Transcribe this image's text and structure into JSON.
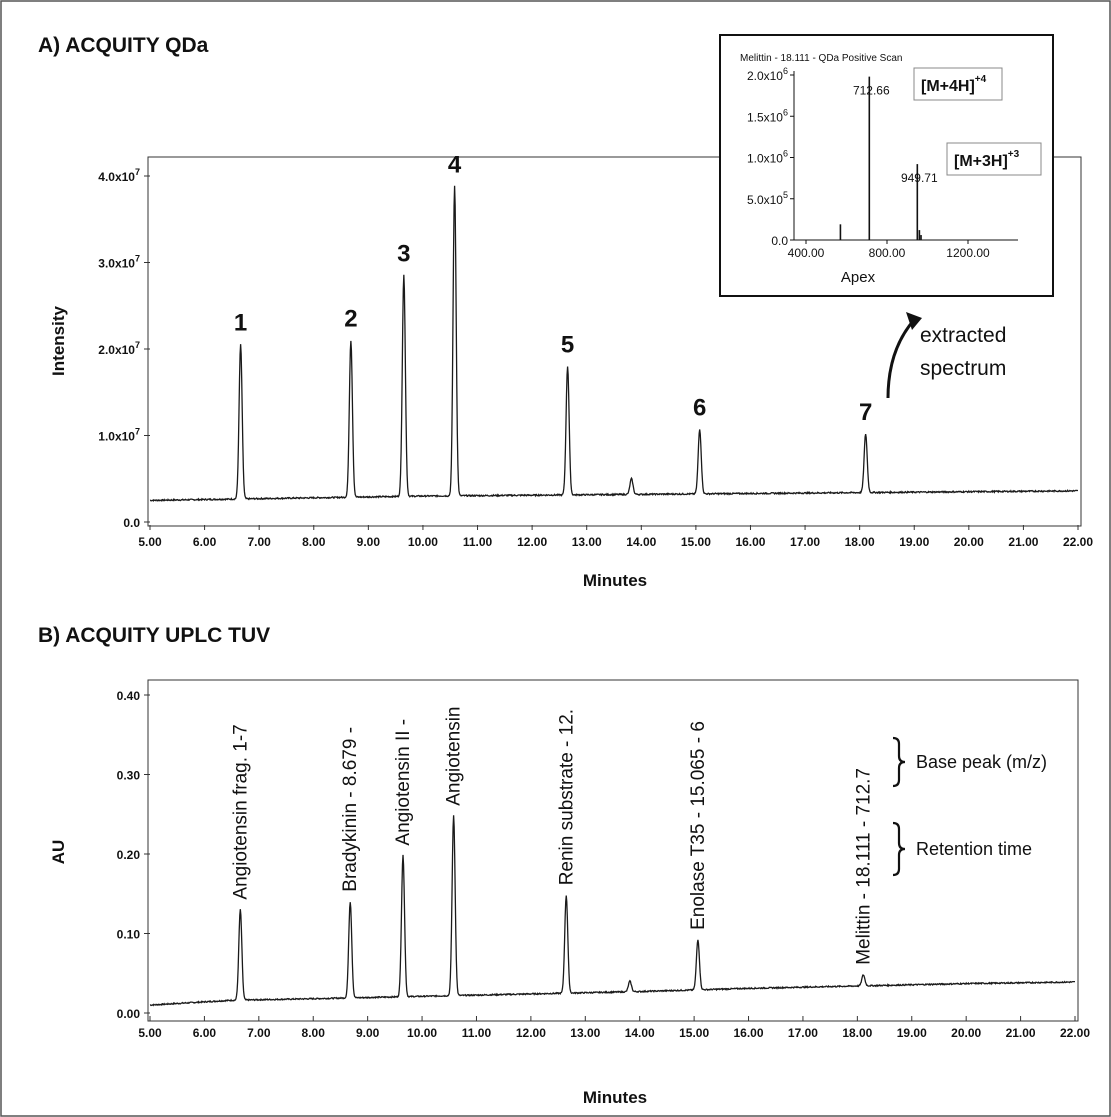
{
  "chart_data": [
    {
      "panel_title": "A) ACQUITY QDa",
      "type": "line",
      "xlabel": "Minutes",
      "ylabel": "Intensity",
      "xlim": [
        5,
        22
      ],
      "ylim": [
        0,
        40000000
      ],
      "x_ticks": [
        "5.00",
        "6.00",
        "7.00",
        "8.00",
        "9.00",
        "10.00",
        "11.00",
        "12.00",
        "13.00",
        "14.00",
        "15.00",
        "16.00",
        "17.00",
        "18.00",
        "19.00",
        "20.00",
        "21.00",
        "22.00"
      ],
      "y_ticks": [
        {
          "value": 0,
          "label": "0.0"
        },
        {
          "value": 10000000,
          "label": "1.0x10",
          "exp": "7"
        },
        {
          "value": 20000000,
          "label": "2.0x10",
          "exp": "7"
        },
        {
          "value": 30000000,
          "label": "3.0x10",
          "exp": "7"
        },
        {
          "value": 40000000,
          "label": "4.0x10",
          "exp": "7"
        }
      ],
      "baseline": [
        [
          5,
          2500000
        ],
        [
          6,
          2600000
        ],
        [
          8,
          2800000
        ],
        [
          10,
          3000000
        ],
        [
          12,
          3100000
        ],
        [
          14,
          3200000
        ],
        [
          16,
          3300000
        ],
        [
          18,
          3400000
        ],
        [
          20,
          3500000
        ],
        [
          22,
          3600000
        ]
      ],
      "peaks": [
        {
          "label": "1",
          "x": 6.66,
          "y": 20500000
        },
        {
          "label": "2",
          "x": 8.68,
          "y": 21000000
        },
        {
          "label": "3",
          "x": 9.65,
          "y": 28500000
        },
        {
          "label": "4",
          "x": 10.58,
          "y": 38800000
        },
        {
          "label": "5",
          "x": 12.65,
          "y": 18000000
        },
        {
          "label": "",
          "x": 13.82,
          "y": 5000000
        },
        {
          "label": "6",
          "x": 15.07,
          "y": 10700000
        },
        {
          "label": "7",
          "x": 18.11,
          "y": 10200000
        }
      ],
      "annotation": "extracted spectrum",
      "inset": {
        "title": "Melittin - 18.111 - QDa Positive Scan",
        "xlabel": "Apex",
        "x_ticks": [
          "400.00",
          "800.00",
          "1200.00"
        ],
        "xlim": [
          200,
          1400
        ],
        "ylim": [
          0,
          2000000
        ],
        "y_ticks": [
          {
            "value": 0,
            "label": "0.0"
          },
          {
            "value": 500000,
            "label": "5.0x10",
            "exp": "5"
          },
          {
            "value": 1000000,
            "label": "1.0x10",
            "exp": "6"
          },
          {
            "value": 1500000,
            "label": "1.5x10",
            "exp": "6"
          },
          {
            "value": 2000000,
            "label": "2.0x10",
            "exp": "6"
          }
        ],
        "bars": [
          {
            "mz": 570,
            "intensity": 190000
          },
          {
            "mz": 712.66,
            "intensity": 1980000,
            "label": "712.66",
            "ion_text": "[M+4H]",
            "ion_sup": "+4"
          },
          {
            "mz": 949.71,
            "intensity": 920000,
            "label": "949.71",
            "ion_text": "[M+3H]",
            "ion_sup": "+3"
          },
          {
            "mz": 960,
            "intensity": 120000
          },
          {
            "mz": 968,
            "intensity": 60000
          }
        ]
      }
    },
    {
      "panel_title": "B) ACQUITY UPLC TUV",
      "type": "line",
      "xlabel": "Minutes",
      "ylabel": "AU",
      "xlim": [
        5,
        22
      ],
      "ylim": [
        0,
        0.4
      ],
      "x_ticks": [
        "5.00",
        "6.00",
        "7.00",
        "8.00",
        "9.00",
        "10.00",
        "11.00",
        "12.00",
        "13.00",
        "14.00",
        "15.00",
        "16.00",
        "17.00",
        "18.00",
        "19.00",
        "20.00",
        "21.00",
        "22.00"
      ],
      "y_ticks": [
        {
          "value": 0,
          "label": "0.00"
        },
        {
          "value": 0.1,
          "label": "0.10"
        },
        {
          "value": 0.2,
          "label": "0.20"
        },
        {
          "value": 0.3,
          "label": "0.30"
        },
        {
          "value": 0.4,
          "label": "0.40"
        }
      ],
      "baseline": [
        [
          5,
          0.01
        ],
        [
          6.5,
          0.016
        ],
        [
          8,
          0.018
        ],
        [
          10,
          0.021
        ],
        [
          12,
          0.024
        ],
        [
          14,
          0.027
        ],
        [
          16,
          0.031
        ],
        [
          18,
          0.034
        ],
        [
          20,
          0.037
        ],
        [
          22,
          0.039
        ]
      ],
      "peaks": [
        {
          "label": "Angiotensin frag. 1-7",
          "x": 6.66,
          "y": 0.13
        },
        {
          "label": "Bradykinin - 8.679 -",
          "x": 8.68,
          "y": 0.14
        },
        {
          "label": "Angiotensin II -",
          "x": 9.65,
          "y": 0.198
        },
        {
          "label": "Angiotensin",
          "x": 10.58,
          "y": 0.248
        },
        {
          "label": "Renin substrate - 12.",
          "x": 12.65,
          "y": 0.148
        },
        {
          "label": "",
          "x": 13.82,
          "y": 0.04
        },
        {
          "label": "Enolase T35 - 15.065 - 6",
          "x": 15.07,
          "y": 0.092
        },
        {
          "label": "Melittin - 18.111 - 712.7",
          "x": 18.11,
          "y": 0.048
        }
      ],
      "braces": [
        {
          "label": "Base peak (m/z)"
        },
        {
          "label": "Retention time"
        }
      ]
    }
  ]
}
